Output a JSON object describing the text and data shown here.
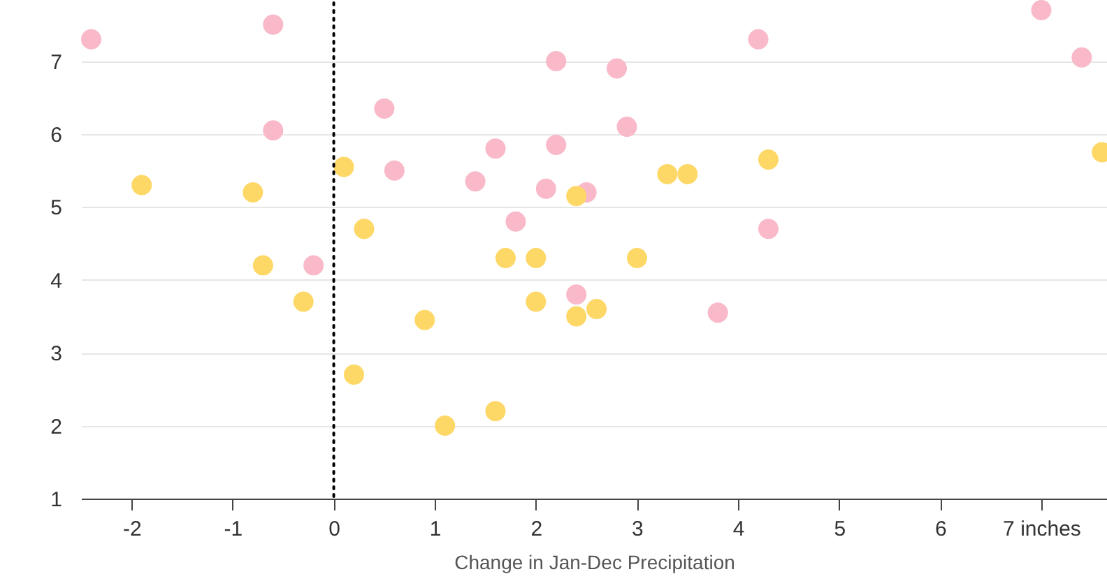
{
  "chart_data": {
    "type": "scatter",
    "xlabel": "Change in Jan-Dec Precipitation",
    "xlim": [
      -2.5,
      7.65
    ],
    "ylim": [
      1,
      7.8
    ],
    "xticks": [
      -2,
      -1,
      0,
      1,
      2,
      3,
      4,
      5,
      6,
      {
        "value": 7,
        "label": "7 inches"
      }
    ],
    "yticks": [
      1,
      2,
      3,
      4,
      5,
      6,
      7
    ],
    "grid": "y",
    "marker": "circle",
    "ref_lines": [
      {
        "axis": "x",
        "value": 0,
        "label": null,
        "color": "#000000",
        "line_style": "dotted"
      }
    ],
    "series": [
      {
        "color": "#f9b9c9",
        "x": [
          -2.4,
          -0.6,
          -0.6,
          -0.2,
          0.5,
          0.6,
          1.4,
          1.6,
          2.2,
          2.2,
          2.8,
          2.9,
          2.1,
          2.5,
          1.8,
          2.4,
          3.8,
          4.2,
          4.3,
          7.0,
          7.4
        ],
        "values": [
          7.3,
          7.5,
          6.05,
          4.2,
          6.35,
          5.5,
          5.35,
          5.8,
          7.0,
          5.85,
          6.9,
          6.1,
          5.25,
          5.2,
          4.8,
          3.8,
          3.55,
          7.3,
          4.7,
          7.7,
          7.05
        ]
      },
      {
        "color": "#fdd867",
        "x": [
          -1.9,
          -0.8,
          -0.7,
          -0.3,
          0.1,
          0.3,
          0.2,
          0.9,
          1.1,
          1.6,
          1.7,
          2.0,
          2.0,
          2.4,
          2.4,
          2.6,
          3.0,
          3.3,
          3.5,
          4.3,
          7.6
        ],
        "values": [
          5.3,
          5.2,
          4.2,
          3.7,
          5.55,
          4.7,
          2.7,
          3.45,
          2.0,
          2.2,
          4.3,
          4.3,
          3.7,
          5.15,
          3.5,
          3.6,
          4.3,
          5.45,
          5.45,
          5.65,
          5.75
        ]
      }
    ]
  }
}
